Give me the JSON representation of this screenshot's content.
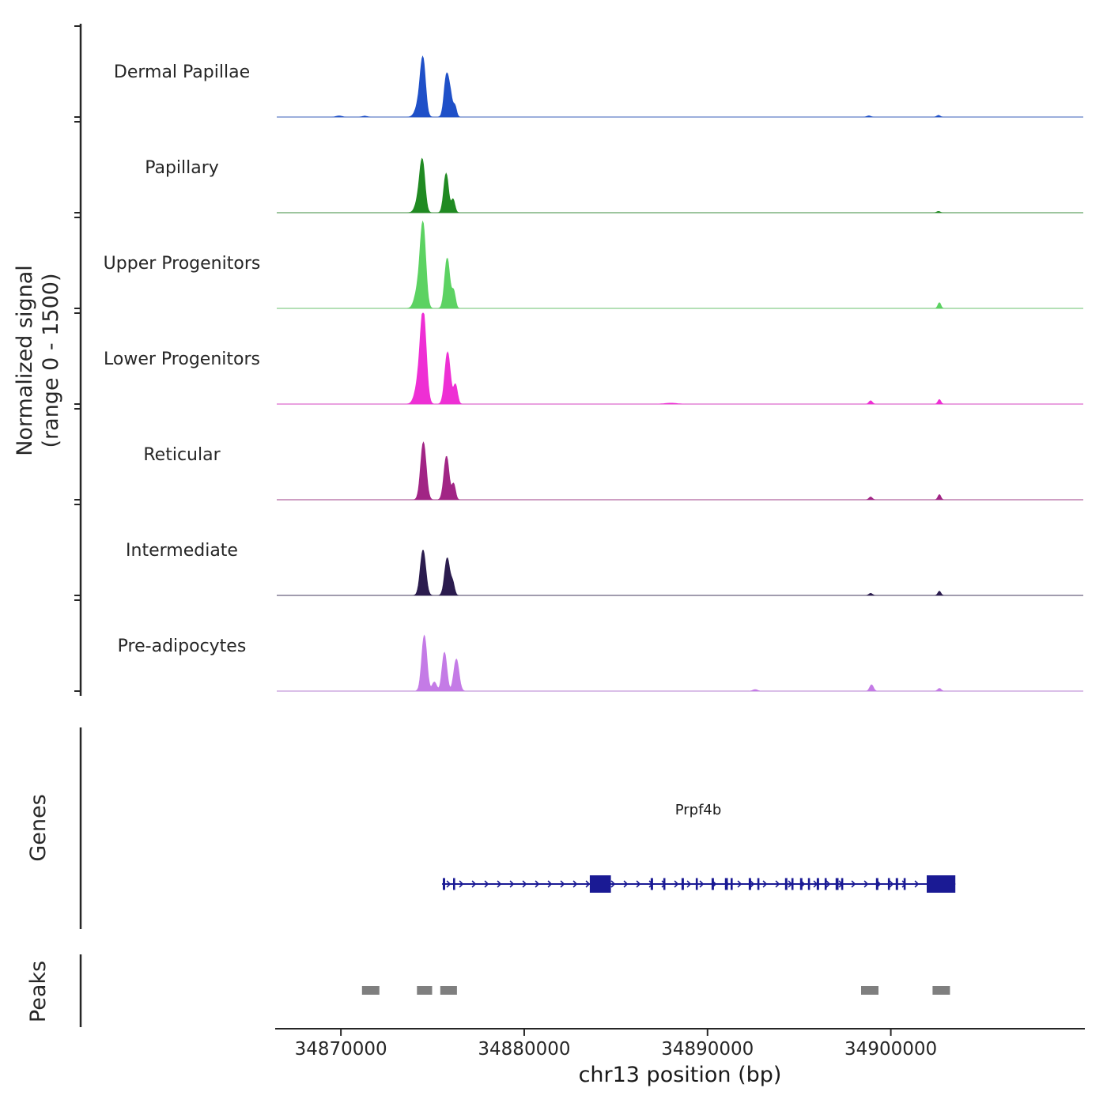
{
  "figure": {
    "y_axis_label_line1": "Normalized signal",
    "y_axis_label_line2": "(range 0 - 1500)",
    "x_axis_label": "chr13 position (bp)",
    "genes_section_label": "Genes",
    "peaks_section_label": "Peaks",
    "gene_name": "Prpf4b"
  },
  "chart_data": {
    "type": "area",
    "title": "",
    "xlabel": "chr13 position (bp)",
    "ylabel": "Normalized signal (range 0 - 1500)",
    "x_domain": [
      34866500,
      34910500
    ],
    "x_ticks": [
      34870000,
      34880000,
      34890000,
      34900000
    ],
    "y_range_per_track": [
      0,
      1500
    ],
    "grid": false,
    "legend_position": "none",
    "tracks": [
      {
        "name": "Dermal Papillae",
        "color": "#1f50c8",
        "peaks": [
          [
            34874480,
            820,
            140
          ],
          [
            34874300,
            260,
            200
          ],
          [
            34875760,
            680,
            130
          ],
          [
            34875980,
            300,
            110
          ],
          [
            34876220,
            180,
            90
          ],
          [
            34869900,
            18,
            150
          ],
          [
            34871300,
            15,
            120
          ],
          [
            34898800,
            20,
            100
          ],
          [
            34902600,
            28,
            90
          ]
        ]
      },
      {
        "name": "Papillary",
        "color": "#208a22",
        "peaks": [
          [
            34874450,
            750,
            140
          ],
          [
            34874260,
            240,
            180
          ],
          [
            34875740,
            650,
            130
          ],
          [
            34876120,
            220,
            100
          ],
          [
            34902600,
            22,
            90
          ]
        ]
      },
      {
        "name": "Upper Progenitors",
        "color": "#5cd262",
        "peaks": [
          [
            34874480,
            1340,
            150
          ],
          [
            34874200,
            300,
            180
          ],
          [
            34875800,
            830,
            140
          ],
          [
            34876150,
            280,
            100
          ],
          [
            34902650,
            95,
            80
          ]
        ]
      },
      {
        "name": "Lower Progenitors",
        "color": "#ee2fd4",
        "peaks": [
          [
            34874500,
            1400,
            160
          ],
          [
            34874250,
            350,
            200
          ],
          [
            34875820,
            860,
            150
          ],
          [
            34876250,
            320,
            110
          ],
          [
            34888000,
            15,
            300
          ],
          [
            34898900,
            55,
            90
          ],
          [
            34902650,
            75,
            80
          ]
        ]
      },
      {
        "name": "Reticular",
        "color": "#a12585",
        "peaks": [
          [
            34874500,
            950,
            150
          ],
          [
            34875760,
            720,
            140
          ],
          [
            34876150,
            260,
            100
          ],
          [
            34898900,
            45,
            90
          ],
          [
            34902650,
            85,
            80
          ]
        ]
      },
      {
        "name": "Intermediate",
        "color": "#2b1c4e",
        "peaks": [
          [
            34874480,
            750,
            150
          ],
          [
            34875800,
            620,
            140
          ],
          [
            34876100,
            200,
            100
          ],
          [
            34898900,
            35,
            90
          ],
          [
            34902650,
            70,
            80
          ]
        ]
      },
      {
        "name": "Pre-adipocytes",
        "color": "#c47be6",
        "peaks": [
          [
            34874550,
            920,
            140
          ],
          [
            34875100,
            150,
            120
          ],
          [
            34875650,
            640,
            130
          ],
          [
            34876300,
            530,
            140
          ],
          [
            34892600,
            25,
            120
          ],
          [
            34898950,
            105,
            100
          ],
          [
            34902650,
            45,
            90
          ]
        ]
      }
    ],
    "gene_track": {
      "label": "Genes",
      "gene": {
        "name": "Prpf4b",
        "strand": "+",
        "color": "#1a1a94",
        "start": 34875520,
        "end": 34903520,
        "exons": [
          [
            34875560,
            130,
            0
          ],
          [
            34876120,
            110,
            0
          ],
          [
            34883580,
            1150,
            1
          ],
          [
            34886900,
            130,
            0
          ],
          [
            34887590,
            110,
            0
          ],
          [
            34888580,
            130,
            0
          ],
          [
            34889360,
            110,
            0
          ],
          [
            34890220,
            130,
            0
          ],
          [
            34890950,
            160,
            0
          ],
          [
            34891260,
            110,
            0
          ],
          [
            34892250,
            130,
            0
          ],
          [
            34892720,
            110,
            0
          ],
          [
            34894230,
            130,
            0
          ],
          [
            34894580,
            110,
            0
          ],
          [
            34895050,
            130,
            0
          ],
          [
            34895480,
            110,
            0
          ],
          [
            34895960,
            130,
            0
          ],
          [
            34896390,
            110,
            0
          ],
          [
            34896990,
            160,
            0
          ],
          [
            34897290,
            110,
            0
          ],
          [
            34899190,
            130,
            0
          ],
          [
            34899840,
            110,
            0
          ],
          [
            34900270,
            130,
            0
          ],
          [
            34900700,
            110,
            0
          ],
          [
            34901960,
            1560,
            1
          ]
        ]
      }
    },
    "peaks_track": {
      "label": "Peaks",
      "color": "#7f7f7f",
      "intervals": [
        [
          34871150,
          34872100
        ],
        [
          34874150,
          34874980
        ],
        [
          34875420,
          34876330
        ],
        [
          34898380,
          34899330
        ],
        [
          34902280,
          34903230
        ]
      ]
    }
  }
}
